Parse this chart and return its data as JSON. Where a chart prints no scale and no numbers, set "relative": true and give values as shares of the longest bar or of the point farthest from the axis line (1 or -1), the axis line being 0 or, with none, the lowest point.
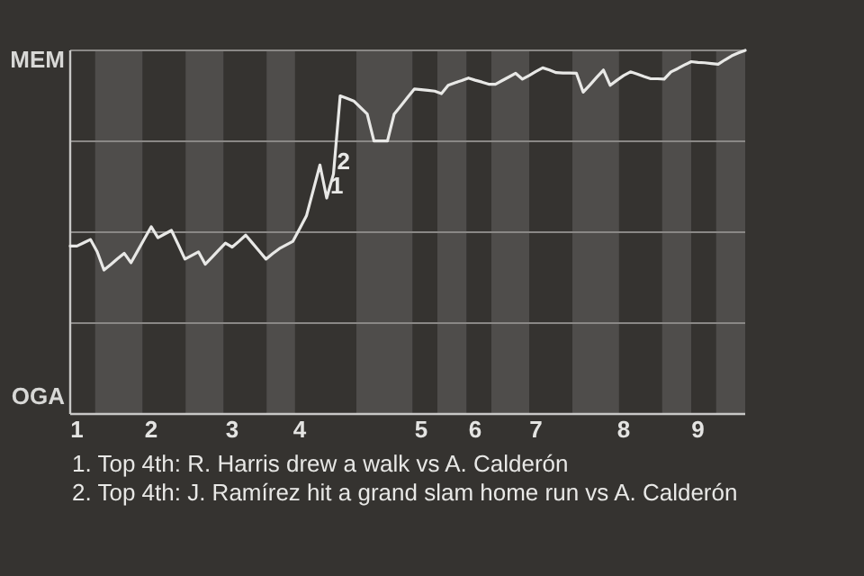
{
  "chart_data": {
    "type": "line",
    "relative": true,
    "categories": [
      null,
      "1",
      null,
      null,
      null,
      null,
      null,
      null,
      null,
      null,
      null,
      null,
      "2",
      null,
      null,
      null,
      null,
      null,
      null,
      null,
      null,
      null,
      null,
      null,
      "3",
      null,
      null,
      null,
      null,
      null,
      null,
      null,
      null,
      null,
      "4",
      null,
      null,
      null,
      null,
      null,
      null,
      null,
      null,
      null,
      null,
      null,
      null,
      null,
      null,
      null,
      null,
      null,
      "5",
      null,
      null,
      null,
      null,
      null,
      null,
      null,
      "6",
      null,
      null,
      null,
      null,
      null,
      null,
      null,
      null,
      "7",
      null,
      null,
      null,
      null,
      null,
      null,
      null,
      null,
      null,
      null,
      null,
      null,
      "8",
      null,
      null,
      null,
      null,
      null,
      null,
      null,
      null,
      null,
      null,
      "9",
      null,
      null,
      null,
      null,
      null,
      null,
      null
    ],
    "grid": "y",
    "marker": "none",
    "line_style": "solid",
    "series": [
      {
        "color": "#e8e8e6",
        "values": [
          0.462,
          0.462,
          0.471,
          0.48,
          0.446,
          0.396,
          0.411,
          0.427,
          0.442,
          0.416,
          0.449,
          0.482,
          0.515,
          0.485,
          0.495,
          0.505,
          0.466,
          0.426,
          0.436,
          0.446,
          0.412,
          0.431,
          0.451,
          0.47,
          0.459,
          0.475,
          0.492,
          0.47,
          0.448,
          0.426,
          0.441,
          0.455,
          0.465,
          0.475,
          0.51,
          0.545,
          0.615,
          0.685,
          0.594,
          0.66,
          0.875,
          0.868,
          0.861,
          0.843,
          0.825,
          0.751,
          0.751,
          0.751,
          0.825,
          0.848,
          0.871,
          0.894,
          0.892,
          0.89,
          0.888,
          0.881,
          0.904,
          0.911,
          0.917,
          0.924,
          0.918,
          0.913,
          0.907,
          0.907,
          0.917,
          0.927,
          0.937,
          0.921,
          0.931,
          0.942,
          0.952,
          0.946,
          0.939,
          0.938,
          0.938,
          0.937,
          0.885,
          0.905,
          0.926,
          0.946,
          0.904,
          0.918,
          0.931,
          0.941,
          0.935,
          0.928,
          0.922,
          0.922,
          0.921,
          0.941,
          0.95,
          0.96,
          0.969,
          0.967,
          0.966,
          0.964,
          0.962,
          0.974,
          0.985,
          0.993,
          1
        ]
      }
    ],
    "annotations": [
      {
        "text": "1",
        "y": 0.594
      },
      {
        "text": "2",
        "y": 0.66
      },
      "MEM",
      "OGA",
      "1. Top 4th: R. Harris drew a walk vs A. Calderón",
      "2. Top 4th: J. Ramírez hit a grand slam home run vs A. Calderón"
    ]
  }
}
